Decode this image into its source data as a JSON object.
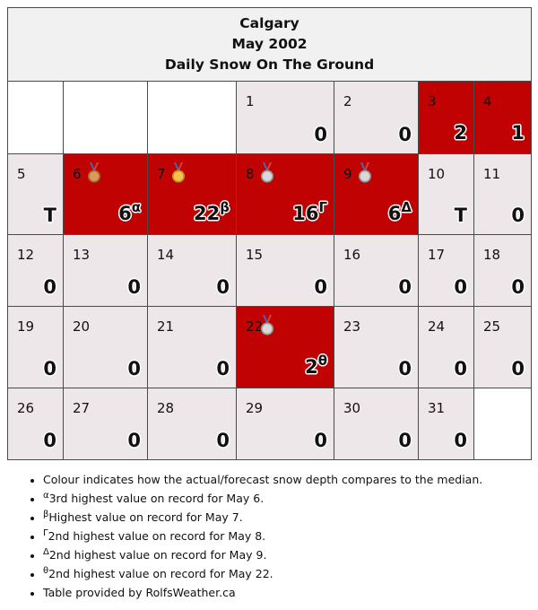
{
  "header": {
    "city": "Calgary",
    "month": "May 2002",
    "subtitle": "Daily Snow On The Ground"
  },
  "colors": {
    "above_median": "#c10203",
    "normal": "#ede7e9",
    "empty": "#ffffff",
    "header_bg": "#f1f1f1"
  },
  "days": [
    {
      "day": "1",
      "value": "0",
      "mark": "",
      "medal": "",
      "high": false
    },
    {
      "day": "2",
      "value": "0",
      "mark": "",
      "medal": "",
      "high": false
    },
    {
      "day": "3",
      "value": "2",
      "mark": "",
      "medal": "",
      "high": true
    },
    {
      "day": "4",
      "value": "1",
      "mark": "",
      "medal": "",
      "high": true
    },
    {
      "day": "5",
      "value": "T",
      "mark": "",
      "medal": "",
      "high": false
    },
    {
      "day": "6",
      "value": "6",
      "mark": "α",
      "medal": "bronze",
      "high": true
    },
    {
      "day": "7",
      "value": "22",
      "mark": "β",
      "medal": "gold",
      "high": true
    },
    {
      "day": "8",
      "value": "16",
      "mark": "Γ",
      "medal": "silver",
      "high": true
    },
    {
      "day": "9",
      "value": "6",
      "mark": "Δ",
      "medal": "silver",
      "high": true
    },
    {
      "day": "10",
      "value": "T",
      "mark": "",
      "medal": "",
      "high": false
    },
    {
      "day": "11",
      "value": "0",
      "mark": "",
      "medal": "",
      "high": false
    },
    {
      "day": "12",
      "value": "0",
      "mark": "",
      "medal": "",
      "high": false
    },
    {
      "day": "13",
      "value": "0",
      "mark": "",
      "medal": "",
      "high": false
    },
    {
      "day": "14",
      "value": "0",
      "mark": "",
      "medal": "",
      "high": false
    },
    {
      "day": "15",
      "value": "0",
      "mark": "",
      "medal": "",
      "high": false
    },
    {
      "day": "16",
      "value": "0",
      "mark": "",
      "medal": "",
      "high": false
    },
    {
      "day": "17",
      "value": "0",
      "mark": "",
      "medal": "",
      "high": false
    },
    {
      "day": "18",
      "value": "0",
      "mark": "",
      "medal": "",
      "high": false
    },
    {
      "day": "19",
      "value": "0",
      "mark": "",
      "medal": "",
      "high": false
    },
    {
      "day": "20",
      "value": "0",
      "mark": "",
      "medal": "",
      "high": false
    },
    {
      "day": "21",
      "value": "0",
      "mark": "",
      "medal": "",
      "high": false
    },
    {
      "day": "22",
      "value": "2",
      "mark": "θ",
      "medal": "silver",
      "high": true
    },
    {
      "day": "23",
      "value": "0",
      "mark": "",
      "medal": "",
      "high": false
    },
    {
      "day": "24",
      "value": "0",
      "mark": "",
      "medal": "",
      "high": false
    },
    {
      "day": "25",
      "value": "0",
      "mark": "",
      "medal": "",
      "high": false
    },
    {
      "day": "26",
      "value": "0",
      "mark": "",
      "medal": "",
      "high": false
    },
    {
      "day": "27",
      "value": "0",
      "mark": "",
      "medal": "",
      "high": false
    },
    {
      "day": "28",
      "value": "0",
      "mark": "",
      "medal": "",
      "high": false
    },
    {
      "day": "29",
      "value": "0",
      "mark": "",
      "medal": "",
      "high": false
    },
    {
      "day": "30",
      "value": "0",
      "mark": "",
      "medal": "",
      "high": false
    },
    {
      "day": "31",
      "value": "0",
      "mark": "",
      "medal": "",
      "high": false
    }
  ],
  "notes": [
    {
      "sup": "",
      "text": "Colour indicates how the actual/forecast snow depth compares to the median."
    },
    {
      "sup": "α",
      "text": "3rd highest value on record for May 6."
    },
    {
      "sup": "β",
      "text": "Highest value on record for May 7."
    },
    {
      "sup": "Γ",
      "text": "2nd highest value on record for May 8."
    },
    {
      "sup": "Δ",
      "text": "2nd highest value on record for May 9."
    },
    {
      "sup": "θ",
      "text": "2nd highest value on record for May 22."
    },
    {
      "sup": "",
      "text": "Table provided by RolfsWeather.ca"
    }
  ]
}
